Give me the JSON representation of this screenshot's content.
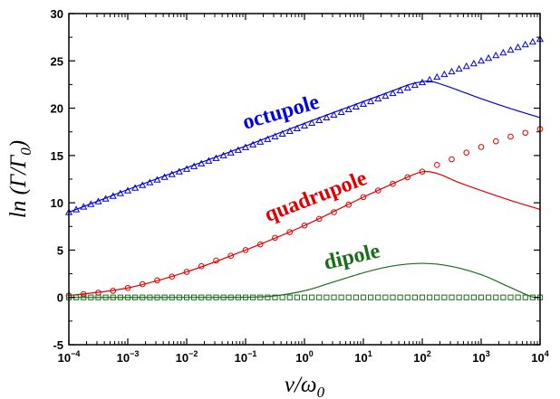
{
  "chart_data": {
    "type": "line",
    "title": "",
    "xlabel": "ν/ω₀",
    "ylabel": "ln (Γ/Γ₀)",
    "xscale": "log",
    "xlim": [
      0.0001,
      10000
    ],
    "ylim": [
      -5,
      30
    ],
    "grid": false,
    "legend": "none (series labelled inline)",
    "x_ticks": [
      {
        "base": "10",
        "exp": "−4",
        "value": 0.0001
      },
      {
        "base": "10",
        "exp": "−3",
        "value": 0.001
      },
      {
        "base": "10",
        "exp": "−2",
        "value": 0.01
      },
      {
        "base": "10",
        "exp": "−1",
        "value": 0.1
      },
      {
        "base": "10",
        "exp": "0",
        "value": 1
      },
      {
        "base": "10",
        "exp": "1",
        "value": 10
      },
      {
        "base": "10",
        "exp": "2",
        "value": 100
      },
      {
        "base": "10",
        "exp": "3",
        "value": 1000
      },
      {
        "base": "10",
        "exp": "4",
        "value": 10000
      }
    ],
    "y_ticks": [
      "-5",
      "0",
      "5",
      "10",
      "15",
      "20",
      "25",
      "30"
    ],
    "series": [
      {
        "name": "octupole",
        "color": "#0000e0",
        "curve": {
          "x": [
            0.0001,
            0.001,
            0.01,
            0.1,
            1,
            10,
            30,
            60,
            100,
            150,
            300,
            1000,
            3000,
            10000
          ],
          "y": [
            9.0,
            11.4,
            13.7,
            16.0,
            18.4,
            20.7,
            21.8,
            22.5,
            22.8,
            22.8,
            22.2,
            21.0,
            20.0,
            19.0
          ]
        },
        "markers": {
          "symbol": "triangle",
          "x_min_exp": -4,
          "x_max_exp": 4,
          "y_at_min": 9.0,
          "y_at_max": 27.3,
          "per_decade": 8
        }
      },
      {
        "name": "quadrupole",
        "color": "#e00000",
        "curve": {
          "x": [
            0.0001,
            0.001,
            0.01,
            0.1,
            1,
            10,
            40,
            80,
            120,
            200,
            400,
            1000,
            3000,
            10000
          ],
          "y": [
            0.2,
            1.0,
            2.7,
            5.0,
            7.6,
            10.6,
            12.3,
            13.1,
            13.3,
            13.0,
            12.2,
            11.3,
            10.3,
            9.3
          ]
        },
        "markers": {
          "symbol": "circle",
          "x": [
            0.0001,
            0.000178,
            0.000316,
            0.000562,
            0.001,
            0.00178,
            0.00316,
            0.00562,
            0.01,
            0.0178,
            0.0316,
            0.0562,
            0.1,
            0.178,
            0.316,
            0.562,
            1,
            1.78,
            3.16,
            5.62,
            10,
            17.8,
            31.6,
            56.2,
            100,
            178,
            316,
            562,
            1000,
            1780,
            3160,
            5620,
            10000
          ],
          "y": [
            0.2,
            0.35,
            0.5,
            0.7,
            1.0,
            1.4,
            1.8,
            2.2,
            2.7,
            3.3,
            3.9,
            4.4,
            5.0,
            5.6,
            6.3,
            6.9,
            7.6,
            8.3,
            9.0,
            9.8,
            10.6,
            11.3,
            12.0,
            12.7,
            13.3,
            14.0,
            14.6,
            15.3,
            15.9,
            16.5,
            17.0,
            17.4,
            17.8
          ]
        }
      },
      {
        "name": "dipole",
        "color": "#1a6e1a",
        "curve": {
          "x": [
            0.0001,
            0.01,
            0.1,
            0.3,
            1,
            3,
            10,
            30,
            100,
            300,
            1000,
            3000,
            7000,
            10000
          ],
          "y": [
            0,
            0,
            0.02,
            0.15,
            0.7,
            1.6,
            2.6,
            3.3,
            3.6,
            3.3,
            2.4,
            1.1,
            0.1,
            0
          ]
        },
        "markers": {
          "symbol": "square",
          "x_min_exp": -4,
          "x_max_exp": 4,
          "y": 0,
          "per_decade": 8
        }
      }
    ]
  }
}
